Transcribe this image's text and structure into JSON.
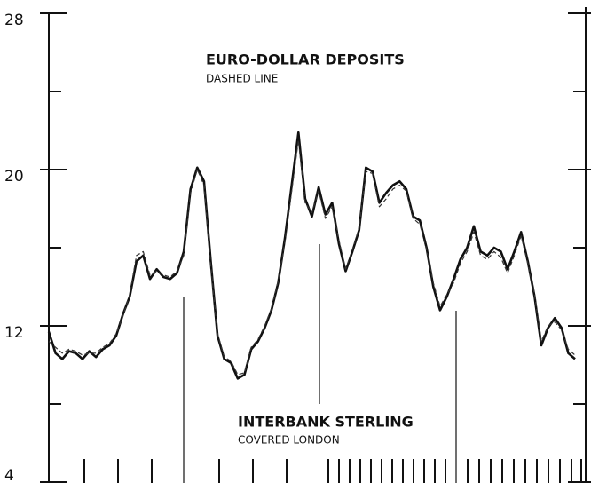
{
  "chart_data": {
    "type": "line",
    "annotations": [
      "EURO-DOLLAR DEPOSITS",
      "DASHED LINE",
      "INTERBANK STERLING",
      "COVERED LONDON"
    ],
    "ylim": [
      4,
      28
    ],
    "yticks": [
      4,
      12,
      20,
      28
    ],
    "minor_yticks": [
      8,
      16,
      24
    ],
    "series": [
      {
        "name": "INTERBANK STERLING",
        "color": "#111111",
        "dash": false,
        "values": [
          11.7,
          10.6,
          10.3,
          10.7,
          10.6,
          10.3,
          10.7,
          10.4,
          10.8,
          11.0,
          11.5,
          12.6,
          13.5,
          15.3,
          15.6,
          14.4,
          14.9,
          14.5,
          14.4,
          14.7,
          15.8,
          19.0,
          20.1,
          19.4,
          15.3,
          11.5,
          10.3,
          10.1,
          9.3,
          9.5,
          10.8,
          11.2,
          11.9,
          12.8,
          14.2,
          16.5,
          19.2,
          21.9,
          18.5,
          17.6,
          19.1,
          17.7,
          18.3,
          16.2,
          14.8,
          15.8,
          16.9,
          20.1,
          19.9,
          18.3,
          18.8,
          19.2,
          19.4,
          19.0,
          17.6,
          17.4,
          16.0,
          14.0,
          12.8,
          13.5,
          14.4,
          15.4,
          16.0,
          17.1,
          15.8,
          15.6,
          16.0,
          15.8,
          14.9,
          15.8,
          16.8,
          15.3,
          13.5,
          11.0,
          11.9,
          12.4,
          11.9,
          10.6,
          10.3
        ]
      },
      {
        "name": "EURO-DOLLAR DEPOSITS",
        "color": "#333333",
        "dash": true,
        "values": [
          11.2,
          10.9,
          10.6,
          10.8,
          10.7,
          10.5,
          10.6,
          10.6,
          10.9,
          11.1,
          11.6,
          12.5,
          13.6,
          15.6,
          15.8,
          14.6,
          14.8,
          14.6,
          14.5,
          14.8,
          15.6,
          18.8,
          20.0,
          19.2,
          15.1,
          11.6,
          10.4,
          10.2,
          9.5,
          9.6,
          10.9,
          11.3,
          12.0,
          12.9,
          14.3,
          16.3,
          18.9,
          21.5,
          18.3,
          17.8,
          18.9,
          17.5,
          18.1,
          16.4,
          14.9,
          15.9,
          17.0,
          19.9,
          19.8,
          18.1,
          18.5,
          19.0,
          19.2,
          18.9,
          17.5,
          17.2,
          15.9,
          14.2,
          13.0,
          13.6,
          14.2,
          15.2,
          15.8,
          16.8,
          15.6,
          15.4,
          15.8,
          15.5,
          14.7,
          15.6,
          16.6,
          15.2,
          13.6,
          11.2,
          12.0,
          12.2,
          11.8,
          10.8,
          10.5
        ]
      }
    ]
  }
}
